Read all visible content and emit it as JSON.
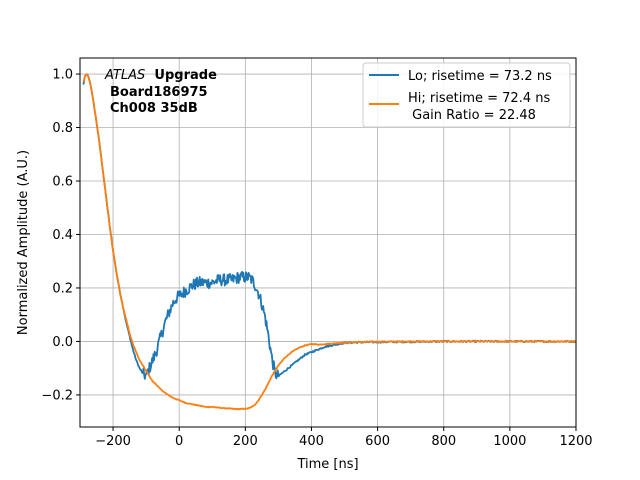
{
  "chart_data": {
    "type": "line",
    "xlabel": "Time [ns]",
    "ylabel": "Normalized Amplitude (A.U.)",
    "xlim": [
      -300,
      1200
    ],
    "ylim": [
      -0.32,
      1.06
    ],
    "xticks": [
      -200,
      0,
      200,
      400,
      600,
      800,
      1000,
      1200
    ],
    "xtick_labels": [
      "−200",
      "0",
      "200",
      "400",
      "600",
      "800",
      "1000",
      "1200"
    ],
    "yticks": [
      -0.2,
      0.0,
      0.2,
      0.4,
      0.6,
      0.8,
      1.0
    ],
    "ytick_labels": [
      "−0.2",
      "0.0",
      "0.2",
      "0.4",
      "0.6",
      "0.8",
      "1.0"
    ],
    "grid": true,
    "legend_placement": "top-right",
    "annotation": {
      "italic": "ATLAS",
      "bold": "Upgrade",
      "line2": "Board186975",
      "line3": "Ch008 35dB"
    },
    "series": [
      {
        "name": "Lo; risetime = 73.2 ns",
        "color": "#1f77b4",
        "x": [
          -290,
          -285,
          -280,
          -275,
          -270,
          -265,
          -260,
          -250,
          -240,
          -230,
          -220,
          -210,
          -200,
          -190,
          -180,
          -170,
          -160,
          -150,
          -140,
          -130,
          -120,
          -110,
          -100,
          -90,
          -80,
          -70,
          -60,
          -50,
          -40,
          -30,
          -20,
          -10,
          0,
          10,
          20,
          30,
          40,
          60,
          80,
          100,
          120,
          140,
          160,
          180,
          200,
          210,
          220,
          230,
          240,
          250,
          260,
          270,
          280,
          290,
          300,
          320,
          340,
          360,
          380,
          400,
          420,
          440,
          460,
          480,
          500,
          550,
          600,
          700,
          800,
          900,
          1000,
          1100,
          1200
        ],
        "y": [
          0.96,
          0.99,
          1.0,
          0.99,
          0.97,
          0.94,
          0.9,
          0.82,
          0.73,
          0.63,
          0.53,
          0.43,
          0.34,
          0.26,
          0.19,
          0.13,
          0.07,
          0.02,
          -0.03,
          -0.07,
          -0.1,
          -0.12,
          -0.13,
          -0.1,
          -0.07,
          -0.04,
          0.0,
          0.04,
          0.08,
          0.11,
          0.14,
          0.16,
          0.17,
          0.18,
          0.19,
          0.2,
          0.21,
          0.22,
          0.22,
          0.22,
          0.23,
          0.23,
          0.23,
          0.24,
          0.24,
          0.24,
          0.23,
          0.21,
          0.18,
          0.14,
          0.09,
          0.02,
          -0.06,
          -0.12,
          -0.13,
          -0.11,
          -0.09,
          -0.07,
          -0.05,
          -0.04,
          -0.03,
          -0.02,
          -0.015,
          -0.01,
          -0.005,
          -0.003,
          -0.002,
          -0.001,
          0.0,
          0.0,
          0.0,
          0.0,
          0.0
        ]
      },
      {
        "name": "Hi; risetime = 72.4 ns",
        "label_extra": " Gain Ratio = 22.48",
        "color": "#ff7f0e",
        "x": [
          -290,
          -285,
          -280,
          -275,
          -270,
          -265,
          -260,
          -250,
          -240,
          -230,
          -220,
          -210,
          -200,
          -190,
          -180,
          -170,
          -160,
          -150,
          -140,
          -130,
          -120,
          -110,
          -100,
          -90,
          -80,
          -70,
          -60,
          -50,
          -40,
          -20,
          0,
          20,
          40,
          60,
          80,
          100,
          120,
          140,
          160,
          180,
          200,
          210,
          220,
          230,
          240,
          250,
          260,
          270,
          280,
          290,
          300,
          320,
          340,
          360,
          380,
          400,
          410,
          420,
          440,
          460,
          480,
          500,
          550,
          600,
          700,
          800,
          900,
          1000,
          1100,
          1200
        ],
        "y": [
          0.97,
          0.99,
          1.0,
          0.99,
          0.97,
          0.94,
          0.9,
          0.82,
          0.73,
          0.63,
          0.53,
          0.43,
          0.34,
          0.26,
          0.19,
          0.13,
          0.08,
          0.03,
          -0.01,
          -0.04,
          -0.07,
          -0.09,
          -0.11,
          -0.13,
          -0.15,
          -0.16,
          -0.175,
          -0.185,
          -0.195,
          -0.21,
          -0.22,
          -0.23,
          -0.235,
          -0.24,
          -0.245,
          -0.245,
          -0.248,
          -0.25,
          -0.252,
          -0.253,
          -0.252,
          -0.25,
          -0.245,
          -0.235,
          -0.22,
          -0.2,
          -0.18,
          -0.155,
          -0.13,
          -0.11,
          -0.09,
          -0.06,
          -0.04,
          -0.025,
          -0.015,
          -0.01,
          -0.01,
          -0.012,
          -0.01,
          -0.008,
          -0.006,
          -0.004,
          -0.002,
          -0.001,
          0.0,
          0.0,
          0.0,
          0.0,
          0.0,
          0.0
        ]
      }
    ]
  }
}
